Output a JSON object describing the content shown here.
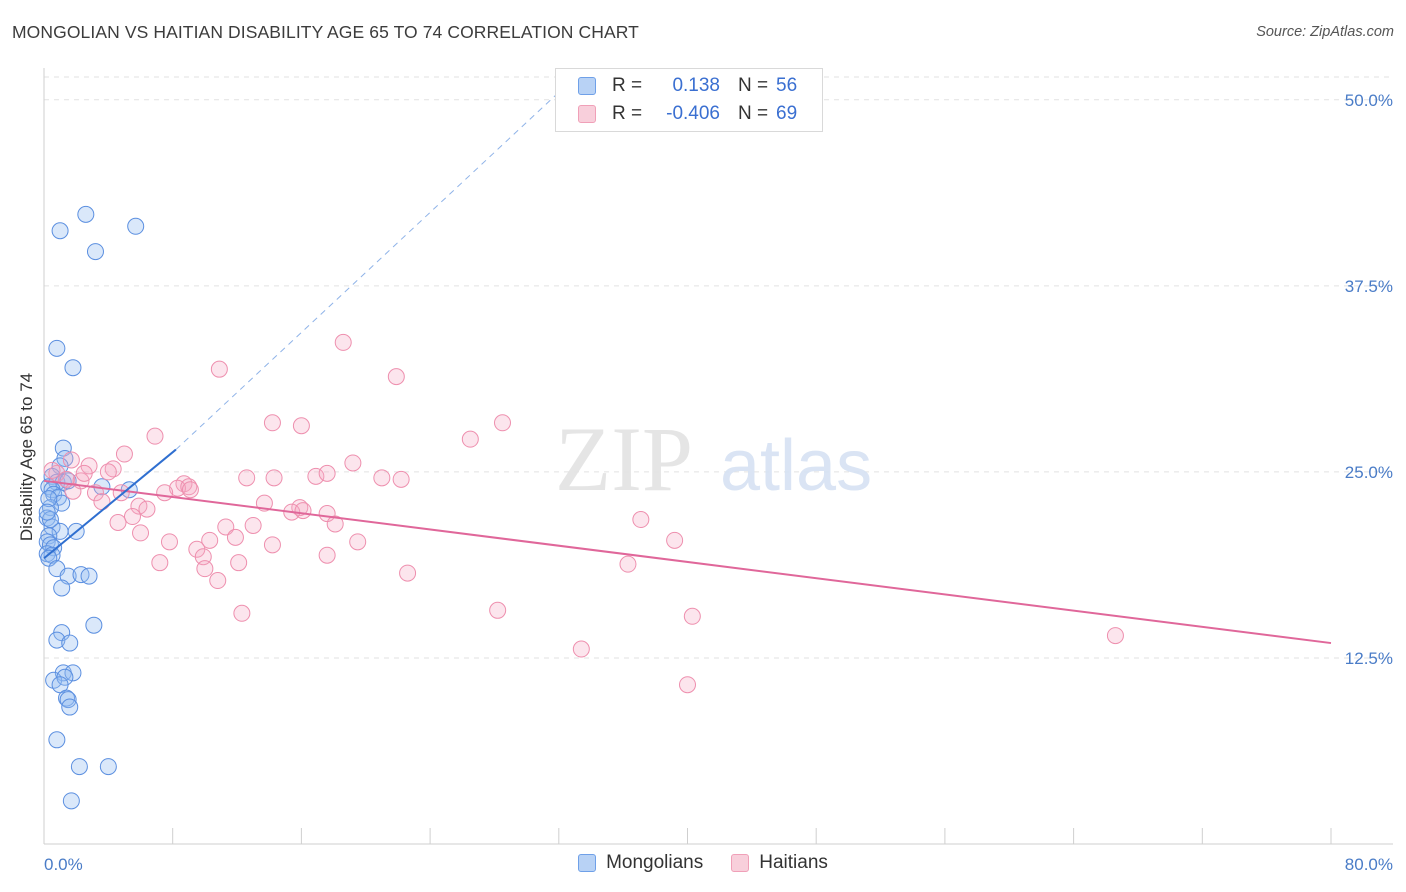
{
  "title": "MONGOLIAN VS HAITIAN DISABILITY AGE 65 TO 74 CORRELATION CHART",
  "source": "Source: ZipAtlas.com",
  "watermark": {
    "zip": "ZIP",
    "atlas": "atlas"
  },
  "legend": {
    "rows": [
      {
        "r_label": "R =",
        "r_value": "0.138",
        "n_label": "N =",
        "n_value": "56",
        "color": "#6fa0e8",
        "fill": "#b8d2f5"
      },
      {
        "r_label": "R =",
        "r_value": "-0.406",
        "n_label": "N =",
        "n_value": "69",
        "color": "#f0a0b8",
        "fill": "#f8cfdb"
      }
    ],
    "series_names": [
      "Mongolians",
      "Haitians"
    ]
  },
  "colors": {
    "blue": "#5b8fe0",
    "blue_fill": "rgba(150,190,240,0.35)",
    "pink": "#ee8fae",
    "pink_fill": "rgba(245,170,195,0.3)",
    "blue_line": "#2f6fd0",
    "pink_line": "#e0679a",
    "tick": "#4a7cc7"
  },
  "chart_data": {
    "type": "scatter",
    "title": "MONGOLIAN VS HAITIAN DISABILITY AGE 65 TO 74 CORRELATION CHART",
    "xlabel": "",
    "ylabel": "Disability Age 65 to 74",
    "xlim": [
      0,
      80
    ],
    "ylim": [
      0,
      52
    ],
    "x_tick_labels": [
      "0.0%",
      "80.0%"
    ],
    "y_ticks": [
      12.5,
      25.0,
      37.5,
      50.0
    ],
    "y_tick_labels": [
      "12.5%",
      "25.0%",
      "37.5%",
      "50.0%"
    ],
    "series": [
      {
        "name": "Mongolians",
        "R": 0.138,
        "N": 56,
        "points": [
          [
            2.6,
            42.3
          ],
          [
            1.0,
            41.2
          ],
          [
            5.7,
            41.5
          ],
          [
            3.2,
            39.8
          ],
          [
            0.8,
            33.3
          ],
          [
            1.8,
            32.0
          ],
          [
            1.2,
            26.6
          ],
          [
            1.3,
            25.9
          ],
          [
            1.0,
            25.4
          ],
          [
            0.5,
            24.7
          ],
          [
            0.8,
            24.3
          ],
          [
            1.2,
            24.3
          ],
          [
            0.3,
            24.0
          ],
          [
            1.5,
            24.4
          ],
          [
            0.5,
            23.8
          ],
          [
            0.6,
            23.5
          ],
          [
            0.9,
            23.3
          ],
          [
            1.1,
            22.9
          ],
          [
            0.4,
            22.6
          ],
          [
            0.2,
            21.9
          ],
          [
            0.5,
            21.3
          ],
          [
            1.0,
            21.0
          ],
          [
            2.0,
            21.0
          ],
          [
            0.3,
            20.7
          ],
          [
            0.2,
            20.3
          ],
          [
            0.4,
            20.1
          ],
          [
            0.6,
            19.9
          ],
          [
            0.2,
            19.5
          ],
          [
            0.5,
            19.4
          ],
          [
            0.3,
            19.2
          ],
          [
            0.8,
            18.5
          ],
          [
            1.5,
            18.0
          ],
          [
            2.3,
            18.1
          ],
          [
            2.8,
            18.0
          ],
          [
            1.1,
            17.2
          ],
          [
            3.1,
            14.7
          ],
          [
            1.1,
            14.2
          ],
          [
            0.8,
            13.7
          ],
          [
            1.6,
            13.5
          ],
          [
            1.2,
            11.5
          ],
          [
            1.8,
            11.5
          ],
          [
            0.6,
            11.0
          ],
          [
            1.3,
            11.2
          ],
          [
            1.0,
            10.7
          ],
          [
            1.4,
            9.8
          ],
          [
            1.5,
            9.7
          ],
          [
            1.6,
            9.2
          ],
          [
            0.8,
            7.0
          ],
          [
            2.2,
            5.2
          ],
          [
            4.0,
            5.2
          ],
          [
            1.7,
            2.9
          ],
          [
            5.3,
            23.8
          ],
          [
            3.6,
            24.0
          ],
          [
            0.3,
            23.2
          ],
          [
            0.4,
            21.8
          ],
          [
            0.2,
            22.3
          ]
        ],
        "trend": {
          "x": [
            0,
            8.2
          ],
          "y": [
            19.2,
            26.5
          ]
        },
        "trend_extended": {
          "x": [
            8.2,
            32
          ],
          "y": [
            26.5,
            50.5
          ]
        }
      },
      {
        "name": "Haitians",
        "R": -0.406,
        "N": 69,
        "points": [
          [
            18.6,
            33.7
          ],
          [
            10.9,
            31.9
          ],
          [
            21.9,
            31.4
          ],
          [
            14.2,
            28.3
          ],
          [
            16.0,
            28.1
          ],
          [
            28.5,
            28.3
          ],
          [
            6.9,
            27.4
          ],
          [
            26.5,
            27.2
          ],
          [
            5.0,
            26.2
          ],
          [
            1.7,
            25.8
          ],
          [
            2.8,
            25.4
          ],
          [
            4.3,
            25.2
          ],
          [
            19.2,
            25.6
          ],
          [
            0.8,
            24.9
          ],
          [
            1.4,
            24.5
          ],
          [
            2.3,
            24.4
          ],
          [
            12.6,
            24.6
          ],
          [
            14.3,
            24.6
          ],
          [
            16.9,
            24.7
          ],
          [
            17.6,
            24.9
          ],
          [
            21.0,
            24.6
          ],
          [
            22.2,
            24.5
          ],
          [
            8.7,
            24.2
          ],
          [
            8.3,
            23.9
          ],
          [
            9.0,
            24.0
          ],
          [
            7.5,
            23.6
          ],
          [
            3.2,
            23.6
          ],
          [
            4.8,
            23.6
          ],
          [
            1.8,
            23.7
          ],
          [
            3.6,
            23.0
          ],
          [
            13.7,
            22.9
          ],
          [
            15.9,
            22.6
          ],
          [
            5.9,
            22.7
          ],
          [
            6.4,
            22.5
          ],
          [
            17.6,
            22.2
          ],
          [
            15.4,
            22.3
          ],
          [
            16.1,
            22.4
          ],
          [
            5.5,
            22.0
          ],
          [
            4.6,
            21.6
          ],
          [
            13.0,
            21.4
          ],
          [
            18.1,
            21.5
          ],
          [
            11.3,
            21.3
          ],
          [
            6.0,
            20.9
          ],
          [
            11.9,
            20.6
          ],
          [
            10.3,
            20.4
          ],
          [
            7.8,
            20.3
          ],
          [
            19.5,
            20.3
          ],
          [
            14.2,
            20.1
          ],
          [
            9.5,
            19.8
          ],
          [
            9.9,
            19.3
          ],
          [
            17.6,
            19.4
          ],
          [
            7.2,
            18.9
          ],
          [
            12.1,
            18.9
          ],
          [
            10.0,
            18.5
          ],
          [
            22.6,
            18.2
          ],
          [
            10.8,
            17.7
          ],
          [
            37.1,
            21.8
          ],
          [
            39.2,
            20.4
          ],
          [
            36.3,
            18.8
          ],
          [
            12.3,
            15.5
          ],
          [
            28.2,
            15.7
          ],
          [
            40.3,
            15.3
          ],
          [
            33.4,
            13.1
          ],
          [
            40.0,
            10.7
          ],
          [
            66.6,
            14.0
          ],
          [
            0.5,
            25.1
          ],
          [
            2.5,
            24.9
          ],
          [
            4.0,
            25.0
          ],
          [
            9.1,
            23.8
          ]
        ],
        "trend": {
          "x": [
            0,
            80
          ],
          "y": [
            24.4,
            13.5
          ]
        }
      }
    ]
  }
}
